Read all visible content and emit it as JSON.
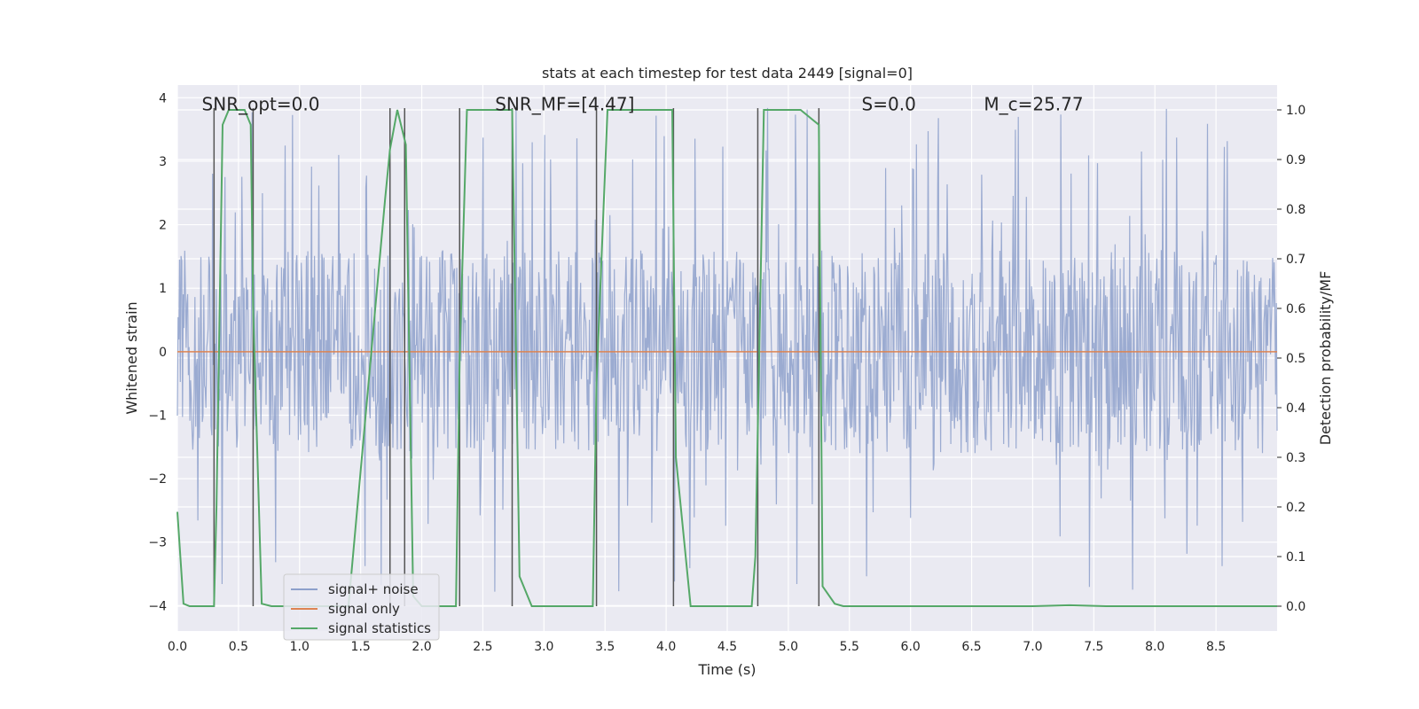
{
  "chart_data": {
    "type": "line",
    "title": "stats at each timestep for test data 2449 [signal=0]",
    "xlabel": "Time (s)",
    "ylabel": "Whitened strain",
    "y2label": "Detection probability/MF",
    "xlim": [
      0,
      9.0
    ],
    "ylim": [
      -4.4,
      4.2
    ],
    "y2lim": [
      -0.05,
      1.05
    ],
    "grid": true,
    "legend_position": "lower-left",
    "xticks": [
      0.0,
      0.5,
      1.0,
      1.5,
      2.0,
      2.5,
      3.0,
      3.5,
      4.0,
      4.5,
      5.0,
      5.5,
      6.0,
      6.5,
      7.0,
      7.5,
      8.0,
      8.5
    ],
    "yticks": [
      -4,
      -3,
      -2,
      -1,
      0,
      1,
      2,
      3,
      4
    ],
    "y2ticks": [
      0.0,
      0.1,
      0.2,
      0.3,
      0.4,
      0.5,
      0.6,
      0.7,
      0.8,
      0.9,
      1.0
    ],
    "annotations": [
      {
        "text": "SNR_opt=0.0",
        "x": 0.2,
        "y": 3.9
      },
      {
        "text": "SNR_MF=[4.47]",
        "x": 2.6,
        "y": 3.9
      },
      {
        "text": "S=0.0",
        "x": 5.6,
        "y": 3.9
      },
      {
        "text": "M_c=25.77",
        "x": 6.6,
        "y": 3.9
      }
    ],
    "vlines": [
      0.3,
      0.62,
      1.74,
      1.86,
      2.31,
      2.74,
      3.43,
      4.06,
      4.75,
      5.25
    ],
    "series": [
      {
        "name": "signal+ noise",
        "color": "#8da0cb",
        "axis": "left",
        "kind": "noise",
        "typical_abs": 1.6,
        "peak_abs": 3.9
      },
      {
        "name": "signal only",
        "color": "#dd8452",
        "axis": "left",
        "x": [
          0,
          9.0
        ],
        "y": [
          0,
          0
        ]
      },
      {
        "name": "signal statistics",
        "color": "#55a868",
        "axis": "right",
        "x": [
          0.0,
          0.05,
          0.1,
          0.3,
          0.32,
          0.37,
          0.42,
          0.55,
          0.6,
          0.62,
          0.69,
          0.77,
          1.0,
          1.4,
          1.7,
          1.74,
          1.8,
          1.87,
          1.93,
          2.0,
          2.28,
          2.31,
          2.37,
          2.5,
          2.74,
          2.8,
          2.9,
          3.4,
          3.43,
          3.52,
          3.8,
          4.05,
          4.08,
          4.2,
          4.7,
          4.73,
          4.8,
          5.1,
          5.25,
          5.28,
          5.38,
          5.45,
          6.0,
          7.0,
          7.3,
          7.6,
          9.0
        ],
        "y": [
          0.19,
          0.005,
          0.0,
          0.0,
          0.2,
          0.97,
          1.0,
          1.0,
          0.97,
          0.6,
          0.005,
          0.0,
          0.0,
          0.0,
          0.82,
          0.92,
          1.0,
          0.93,
          0.02,
          0.0,
          0.0,
          0.5,
          1.0,
          1.0,
          1.0,
          0.06,
          0.0,
          0.0,
          0.45,
          1.0,
          1.0,
          1.0,
          0.3,
          0.0,
          0.0,
          0.1,
          1.0,
          1.0,
          0.97,
          0.04,
          0.005,
          0.0,
          0.0,
          0.0,
          0.002,
          0.0,
          0.0
        ]
      }
    ]
  }
}
